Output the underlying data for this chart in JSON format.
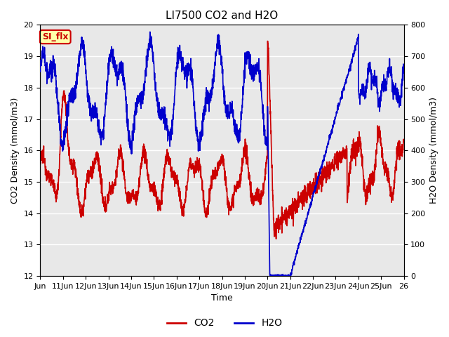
{
  "title": "LI7500 CO2 and H2O",
  "xlabel": "Time",
  "ylabel_left": "CO2 Density (mmol/m3)",
  "ylabel_right": "H2O Density (mmol/m3)",
  "ylim_left": [
    12.0,
    20.0
  ],
  "ylim_right": [
    0,
    800
  ],
  "yticks_left": [
    12.0,
    13.0,
    14.0,
    15.0,
    16.0,
    17.0,
    18.0,
    19.0,
    20.0
  ],
  "yticks_right": [
    0,
    100,
    200,
    300,
    400,
    500,
    600,
    700,
    800
  ],
  "co2_color": "#cc0000",
  "h2o_color": "#0000cc",
  "background_color": "#e8e8e8",
  "grid_color": "#ffffff",
  "annotation_text": "SI_flx",
  "annotation_bg": "#ffffaa",
  "annotation_border": "#cc0000",
  "legend_co2": "CO2",
  "legend_h2o": "H2O",
  "title_fontsize": 11,
  "axis_label_fontsize": 9,
  "tick_fontsize": 8,
  "linewidth": 1.2
}
